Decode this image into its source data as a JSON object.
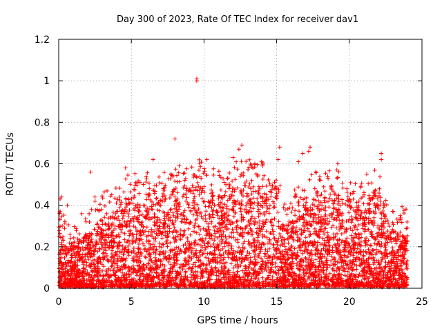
{
  "chart_data": {
    "type": "scatter",
    "title": "Day 300 of 2023, Rate Of TEC Index for receiver dav1",
    "xlabel": "GPS time / hours",
    "ylabel": "ROTI / TECUs",
    "xlim": [
      0,
      25
    ],
    "ylim": [
      0,
      1.2
    ],
    "xticks": [
      0,
      5,
      10,
      15,
      20,
      25
    ],
    "xtick_labels": [
      "0",
      "5",
      "10",
      "15",
      "20",
      "25"
    ],
    "yticks": [
      0,
      0.2,
      0.4,
      0.6,
      0.8,
      1,
      1.2
    ],
    "ytick_labels": [
      "0",
      "0.2",
      "0.4",
      "0.6",
      "0.8",
      "1",
      "1.2"
    ],
    "grid": true,
    "marker": "+",
    "color": "#ff0000",
    "envelope": {
      "description_hours": [
        0,
        0.5,
        1,
        1.5,
        2,
        2.5,
        3,
        3.5,
        4,
        4.5,
        5,
        5.5,
        6,
        6.5,
        7,
        7.5,
        8,
        8.5,
        9,
        9.5,
        10,
        10.5,
        11,
        11.5,
        12,
        12.5,
        13,
        13.5,
        14,
        14.5,
        15,
        15.5,
        16,
        16.5,
        17,
        17.5,
        18,
        18.5,
        19,
        19.5,
        20,
        20.5,
        21,
        21.5,
        22,
        22.5,
        23,
        23.5,
        24
      ],
      "typical_max": [
        0.32,
        0.2,
        0.22,
        0.24,
        0.26,
        0.3,
        0.34,
        0.36,
        0.38,
        0.4,
        0.46,
        0.42,
        0.44,
        0.48,
        0.44,
        0.46,
        0.48,
        0.46,
        0.48,
        0.5,
        0.5,
        0.46,
        0.46,
        0.42,
        0.5,
        0.5,
        0.5,
        0.5,
        0.5,
        0.44,
        0.5,
        0.3,
        0.34,
        0.38,
        0.42,
        0.46,
        0.46,
        0.44,
        0.48,
        0.42,
        0.44,
        0.42,
        0.38,
        0.44,
        0.46,
        0.34,
        0.3,
        0.28,
        0.26
      ]
    },
    "highlight_points": [
      {
        "x": 9.5,
        "y": 1.01
      },
      {
        "x": 9.5,
        "y": 1.0
      },
      {
        "x": 8.0,
        "y": 0.72
      },
      {
        "x": 12.6,
        "y": 0.69
      },
      {
        "x": 12.4,
        "y": 0.67
      },
      {
        "x": 15.2,
        "y": 0.68
      },
      {
        "x": 17.3,
        "y": 0.68
      },
      {
        "x": 17.2,
        "y": 0.66
      },
      {
        "x": 16.8,
        "y": 0.65
      },
      {
        "x": 22.2,
        "y": 0.65
      },
      {
        "x": 22.2,
        "y": 0.62
      },
      {
        "x": 6.5,
        "y": 0.62
      },
      {
        "x": 10.2,
        "y": 0.62
      },
      {
        "x": 12.0,
        "y": 0.63
      },
      {
        "x": 15.1,
        "y": 0.62
      },
      {
        "x": 16.5,
        "y": 0.61
      },
      {
        "x": 13.5,
        "y": 0.6
      },
      {
        "x": 19.2,
        "y": 0.6
      },
      {
        "x": 4.6,
        "y": 0.58
      },
      {
        "x": 8.3,
        "y": 0.59
      },
      {
        "x": 2.2,
        "y": 0.56
      },
      {
        "x": 21.2,
        "y": 0.55
      },
      {
        "x": 0.2,
        "y": 0.44
      },
      {
        "x": 0.1,
        "y": 0.43
      },
      {
        "x": 0.6,
        "y": 0.4
      },
      {
        "x": 23.5,
        "y": 0.35
      },
      {
        "x": 24.0,
        "y": 0.29
      },
      {
        "x": 2.5,
        "y": 0.44
      }
    ]
  }
}
